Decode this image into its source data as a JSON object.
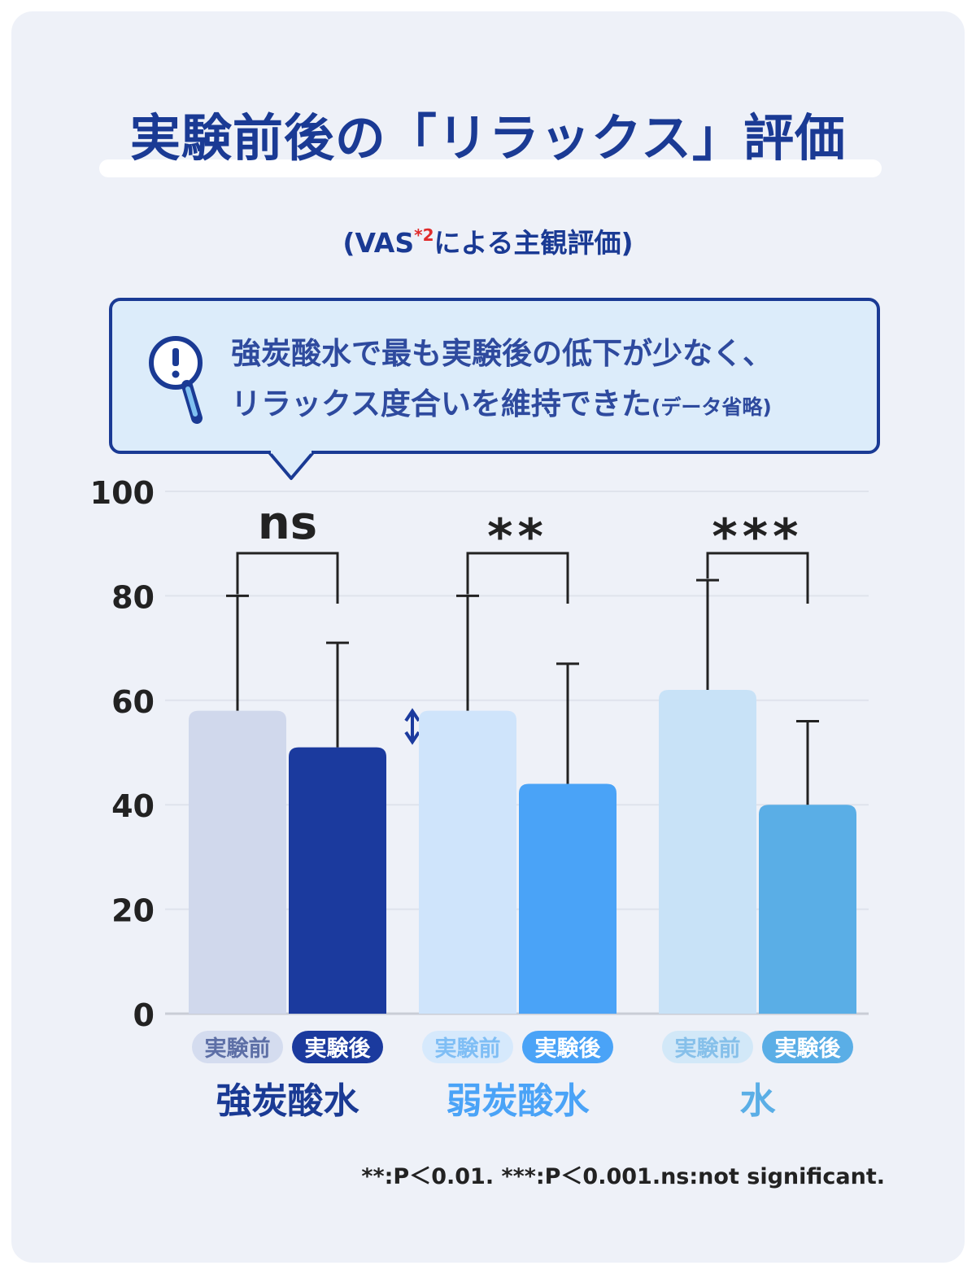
{
  "title": "実験前後の「リラックス」評価",
  "subtitle": {
    "prefix": "(VAS",
    "sup": "*2",
    "suffix": "による主観評価)"
  },
  "callout": {
    "line1": "強炭酸水で最も実験後の低下が少なく、",
    "line2": "リラックス度合いを維持できた",
    "line2_small": "(データ省略)",
    "icon": "magnifier-exclamation-icon"
  },
  "footnote": "**:P＜0.01.  ***:P＜0.001.ns:not significant.",
  "colors": {
    "title": "#1a3a94",
    "strong_before": "#d0d8ec",
    "strong_after": "#1b3a9e",
    "weak_before": "#cfe4fb",
    "weak_after": "#4aa3f7",
    "water_before": "#c8e2f7",
    "water_after": "#5aaee6"
  },
  "chart_data": {
    "type": "bar",
    "ylim": [
      0,
      100
    ],
    "yticks": [
      0,
      20,
      40,
      60,
      80,
      100
    ],
    "grid": true,
    "groups": [
      {
        "name": "強炭酸水",
        "significance": "ns",
        "bars": [
          {
            "label": "実験前",
            "value": 58,
            "error_top": 80,
            "color": "#d0d8ec",
            "label_color": "#5d6fa6",
            "label_bg": "#d4dcef"
          },
          {
            "label": "実験後",
            "value": 51,
            "error_top": 71,
            "color": "#1b3a9e",
            "label_color": "#ffffff",
            "label_bg": "#1b3a9e"
          }
        ],
        "name_color": "#1a3a94",
        "arrow_marker": true
      },
      {
        "name": "弱炭酸水",
        "significance": "**",
        "bars": [
          {
            "label": "実験前",
            "value": 58,
            "error_top": 80,
            "color": "#cfe4fb",
            "label_color": "#7fbef5",
            "label_bg": "#d6e9fc"
          },
          {
            "label": "実験後",
            "value": 44,
            "error_top": 67,
            "color": "#4aa3f7",
            "label_color": "#ffffff",
            "label_bg": "#4aa3f7"
          }
        ],
        "name_color": "#4aa3f7",
        "arrow_marker": false
      },
      {
        "name": "水",
        "significance": "***",
        "bars": [
          {
            "label": "実験前",
            "value": 62,
            "error_top": 83,
            "color": "#c8e2f7",
            "label_color": "#86c0ea",
            "label_bg": "#d2e8f8"
          },
          {
            "label": "実験後",
            "value": 40,
            "error_top": 56,
            "color": "#5aaee6",
            "label_color": "#ffffff",
            "label_bg": "#5aaee6"
          }
        ],
        "name_color": "#5aaee6",
        "arrow_marker": false
      }
    ]
  }
}
